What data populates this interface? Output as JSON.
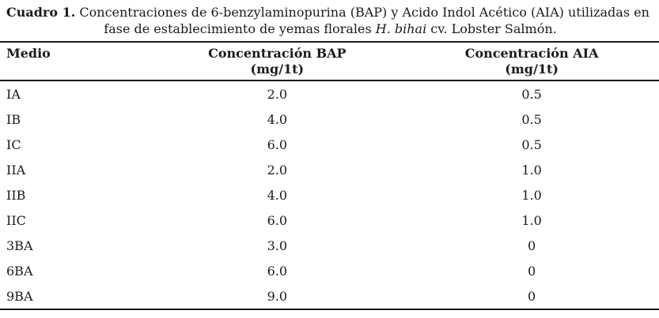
{
  "caption": {
    "label": "Cuadro 1.",
    "line1": "Concentraciones de 6-benzylaminopurina (BAP) y Acido Indol Acético (AIA) utilizadas en",
    "line2_pre": "fase de establecimiento de yemas florales ",
    "line2_italic": "H. bihai",
    "line2_post": " cv. Lobster Salmón."
  },
  "table": {
    "columns": [
      {
        "label": "Medio",
        "unit": ""
      },
      {
        "label": "Concentración BAP",
        "unit": "(mg/1t)"
      },
      {
        "label": "Concentración AIA",
        "unit": "(mg/1t)"
      }
    ],
    "rows": [
      {
        "medio": "IA",
        "bap": "2.0",
        "aia": "0.5"
      },
      {
        "medio": "IB",
        "bap": "4.0",
        "aia": "0.5"
      },
      {
        "medio": "IC",
        "bap": "6.0",
        "aia": "0.5"
      },
      {
        "medio": "IIA",
        "bap": "2.0",
        "aia": "1.0"
      },
      {
        "medio": "IIB",
        "bap": "4.0",
        "aia": "1.0"
      },
      {
        "medio": "IIC",
        "bap": "6.0",
        "aia": "1.0"
      },
      {
        "medio": "3BA",
        "bap": "3.0",
        "aia": "0"
      },
      {
        "medio": "6BA",
        "bap": "6.0",
        "aia": "0"
      },
      {
        "medio": "9BA",
        "bap": "9.0",
        "aia": "0"
      }
    ]
  },
  "colors": {
    "text": "#1a1a1a",
    "rule": "#1a1a1a",
    "background": "#ffffff"
  }
}
